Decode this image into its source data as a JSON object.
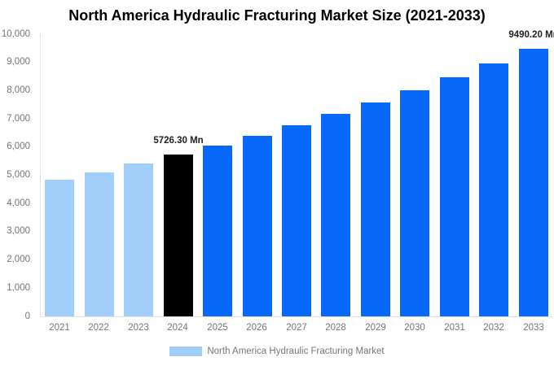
{
  "title": "North America Hydraulic Fracturing Market Size (2021-2033)",
  "colors": {
    "historical_bar": "#A2CEFA",
    "highlight_bar": "#000000",
    "forecast_bar": "#0768FA",
    "axis_line": "#E3E3E3",
    "tick_text": "#757575",
    "value_label_text": "#222222",
    "legend_text": "#757575",
    "title_text": "#000000",
    "background": "#FFFFFF"
  },
  "chart_data": {
    "type": "bar",
    "title": "North America Hydraulic Fracturing Market Size (2021-2033)",
    "categories": [
      "2021",
      "2022",
      "2023",
      "2024",
      "2025",
      "2026",
      "2027",
      "2028",
      "2029",
      "2030",
      "2031",
      "2032",
      "2033"
    ],
    "values": [
      4835,
      5113,
      5410,
      5726.3,
      6057,
      6406,
      6776,
      7167,
      7581,
      8019,
      8481,
      8971,
      9490.2
    ],
    "bar_roles": [
      "historical",
      "historical",
      "historical",
      "highlight",
      "forecast",
      "forecast",
      "forecast",
      "forecast",
      "forecast",
      "forecast",
      "forecast",
      "forecast",
      "forecast"
    ],
    "value_labels": [
      {
        "index": 3,
        "category": "2024",
        "text": "5726.30 Mn"
      },
      {
        "index": 12,
        "category": "2033",
        "text": "9490.20 Mn"
      }
    ],
    "unit": "Mn",
    "xlabel": "",
    "ylabel": "",
    "ylim": [
      0,
      10000
    ],
    "ytick_interval": 1000,
    "yticks": [
      "0",
      "1,000",
      "2,000",
      "3,000",
      "4,000",
      "5,000",
      "6,000",
      "7,000",
      "8,000",
      "9,000",
      "10,000"
    ],
    "grid": false,
    "legend": {
      "position": "bottom",
      "items": [
        {
          "label": "North America Hydraulic Fracturing Market",
          "swatch_color": "#A2CEFA"
        }
      ]
    }
  }
}
